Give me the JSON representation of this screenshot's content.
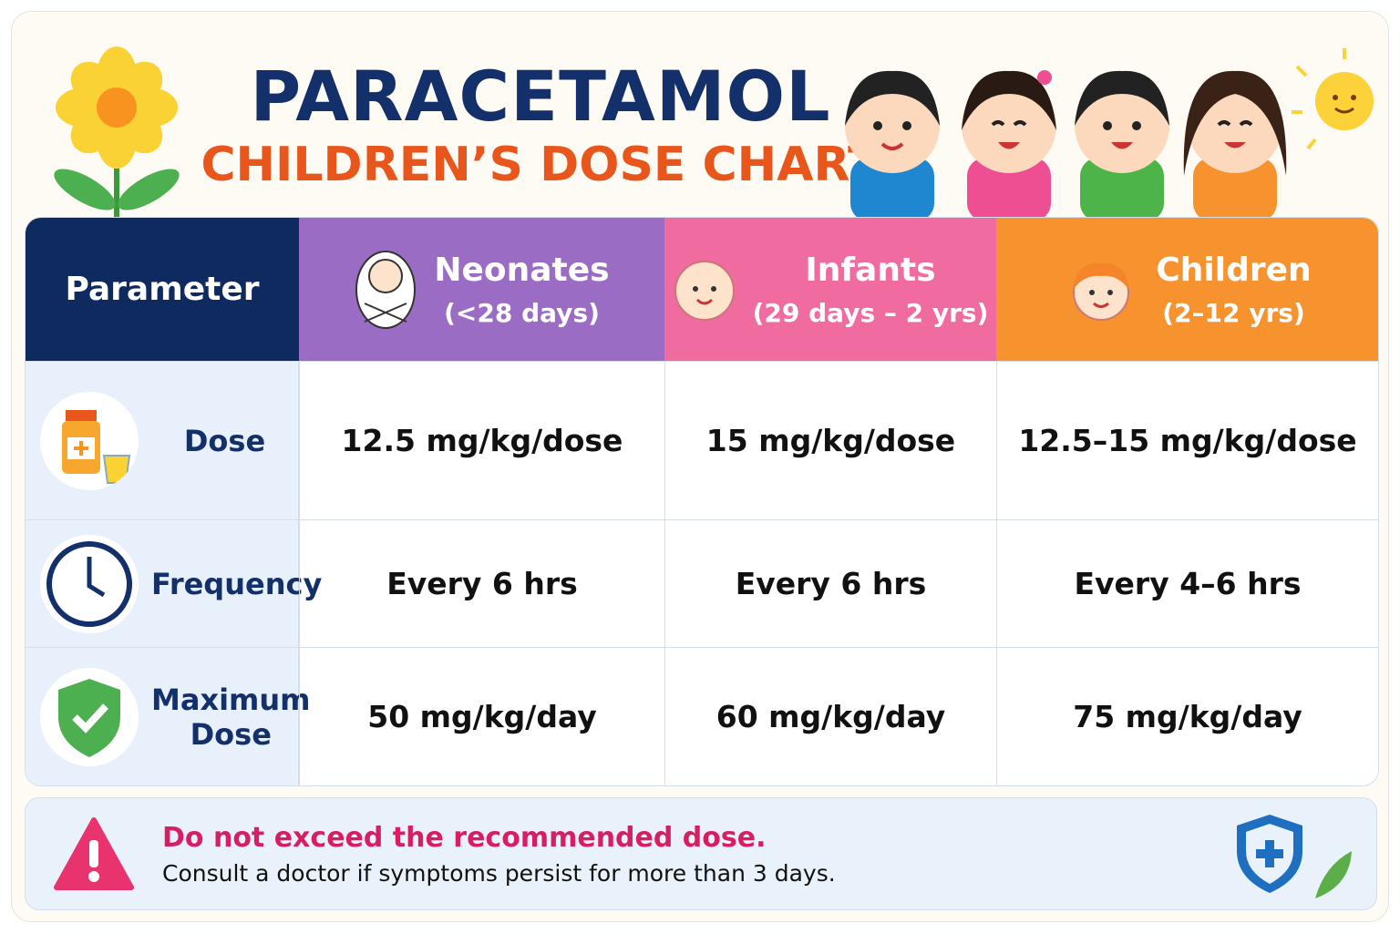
{
  "header": {
    "title": "PARACETAMOL",
    "subtitle": "CHILDREN’S DOSE CHART"
  },
  "table": {
    "columns": [
      {
        "label": "Parameter"
      },
      {
        "label": "Neonates",
        "age": "(<28 days)"
      },
      {
        "label": "Infants",
        "age": "(29 days – 2 yrs)"
      },
      {
        "label": "Children",
        "age": "(2–12 yrs)"
      }
    ],
    "rows": [
      [
        "Dose",
        "12.5 mg/kg/dose",
        "15 mg/kg/dose",
        "12.5–15 mg/kg/dose"
      ],
      [
        "Frequency",
        "Every 6 hrs",
        "Every 6 hrs",
        "Every 4–6 hrs"
      ],
      [
        "Maximum Dose",
        "50 mg/kg/day",
        "60 mg/kg/day",
        "75 mg/kg/day"
      ]
    ]
  },
  "warning": {
    "title": "Do not exceed the recommended dose.",
    "text": "Consult a doctor if symptoms persist for more than 3 days."
  }
}
